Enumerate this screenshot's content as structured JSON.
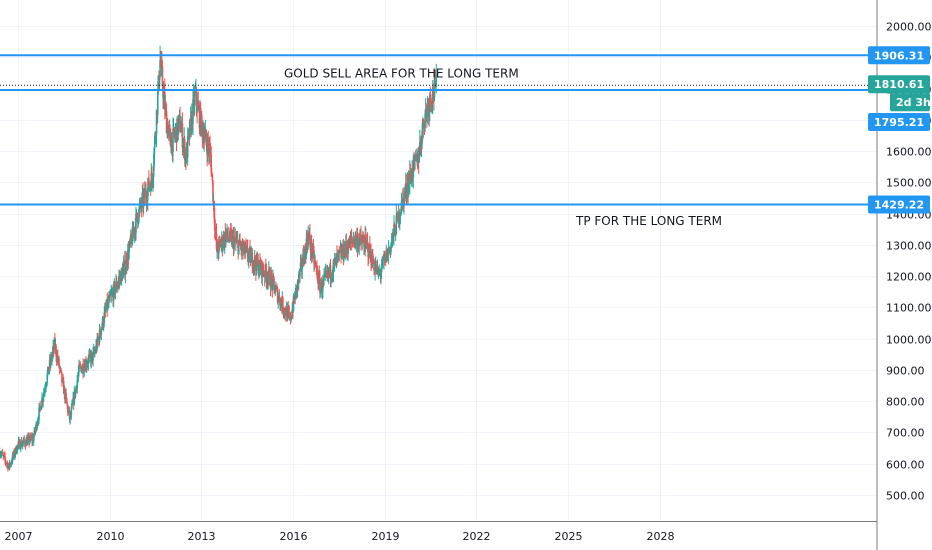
{
  "chart_data": {
    "type": "candlestick",
    "x_ticks": [
      "2007",
      "2010",
      "2013",
      "2016",
      "2019",
      "2022",
      "2025",
      "2028"
    ],
    "x_tick_years": [
      2007,
      2010,
      2013,
      2016,
      2019,
      2022,
      2025,
      2028
    ],
    "x_range": [
      2006.4,
      2034.5
    ],
    "y_ticks": [
      "2000.00",
      "1900.00",
      "1800.00",
      "1700.00",
      "1600.00",
      "1500.00",
      "1400.00",
      "1300.00",
      "1200.00",
      "1100.00",
      "1000.00",
      "900.00",
      "800.00",
      "700.00",
      "600.00",
      "500.00"
    ],
    "y_tick_values": [
      2000,
      1900,
      1800,
      1700,
      1600,
      1500,
      1400,
      1300,
      1200,
      1100,
      1000,
      900,
      800,
      700,
      600,
      500
    ],
    "y_range": [
      430,
      2080
    ],
    "up_color": "#26a69a",
    "down_color": "#ef5350",
    "series_anchors": [
      [
        2006.4,
        640
      ],
      [
        2006.7,
        590
      ],
      [
        2007.0,
        660
      ],
      [
        2007.5,
        680
      ],
      [
        2008.0,
        900
      ],
      [
        2008.2,
        980
      ],
      [
        2008.7,
        740
      ],
      [
        2009.0,
        900
      ],
      [
        2009.5,
        950
      ],
      [
        2009.9,
        1100
      ],
      [
        2010.5,
        1230
      ],
      [
        2010.9,
        1390
      ],
      [
        2011.4,
        1520
      ],
      [
        2011.65,
        1890
      ],
      [
        2011.85,
        1700
      ],
      [
        2012.0,
        1620
      ],
      [
        2012.3,
        1690
      ],
      [
        2012.5,
        1580
      ],
      [
        2012.8,
        1780
      ],
      [
        2013.0,
        1680
      ],
      [
        2013.3,
        1590
      ],
      [
        2013.5,
        1280
      ],
      [
        2013.8,
        1330
      ],
      [
        2014.2,
        1300
      ],
      [
        2014.8,
        1240
      ],
      [
        2015.2,
        1200
      ],
      [
        2015.9,
        1060
      ],
      [
        2016.5,
        1330
      ],
      [
        2016.9,
        1160
      ],
      [
        2017.5,
        1260
      ],
      [
        2018.0,
        1320
      ],
      [
        2018.4,
        1300
      ],
      [
        2018.8,
        1200
      ],
      [
        2019.2,
        1300
      ],
      [
        2019.5,
        1410
      ],
      [
        2019.8,
        1510
      ],
      [
        2020.1,
        1580
      ],
      [
        2020.3,
        1710
      ],
      [
        2020.5,
        1770
      ],
      [
        2020.7,
        1810
      ]
    ],
    "horizontal_levels": [
      {
        "label": "1906.31",
        "value": 1906.31,
        "color": "#2196f3"
      },
      {
        "label": "1795.21",
        "value": 1795.21,
        "color": "#2196f3"
      },
      {
        "label": "1429.22",
        "value": 1429.22,
        "color": "#2196f3"
      }
    ],
    "last_price": {
      "label": "1810.61",
      "value": 1810.61,
      "color": "#26a69a",
      "countdown": "2d 3h"
    },
    "annotations": [
      {
        "text": "GOLD SELL AREA FOR THE LONG TERM",
        "year": 2011.55,
        "value": 1848
      },
      {
        "text": "TP FOR THE LONG TERM",
        "year": 2022.0,
        "value": 1376
      }
    ]
  }
}
